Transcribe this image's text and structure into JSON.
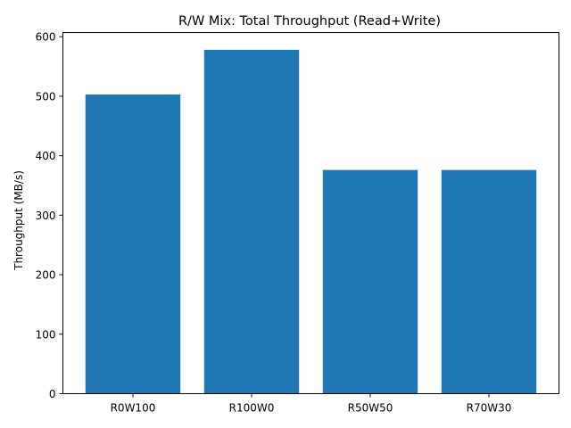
{
  "chart_data": {
    "type": "bar",
    "title": "R/W Mix: Total Throughput (Read+Write)",
    "xlabel": "",
    "ylabel": "Throughput (MB/s)",
    "categories": [
      "R0W100",
      "R100W0",
      "R50W50",
      "R70W30"
    ],
    "values": [
      503,
      578,
      376,
      376
    ],
    "ylim": [
      0,
      607
    ],
    "yticks": [
      0,
      100,
      200,
      300,
      400,
      500,
      600
    ],
    "grid": false,
    "bar_color": "#1f77b4"
  }
}
